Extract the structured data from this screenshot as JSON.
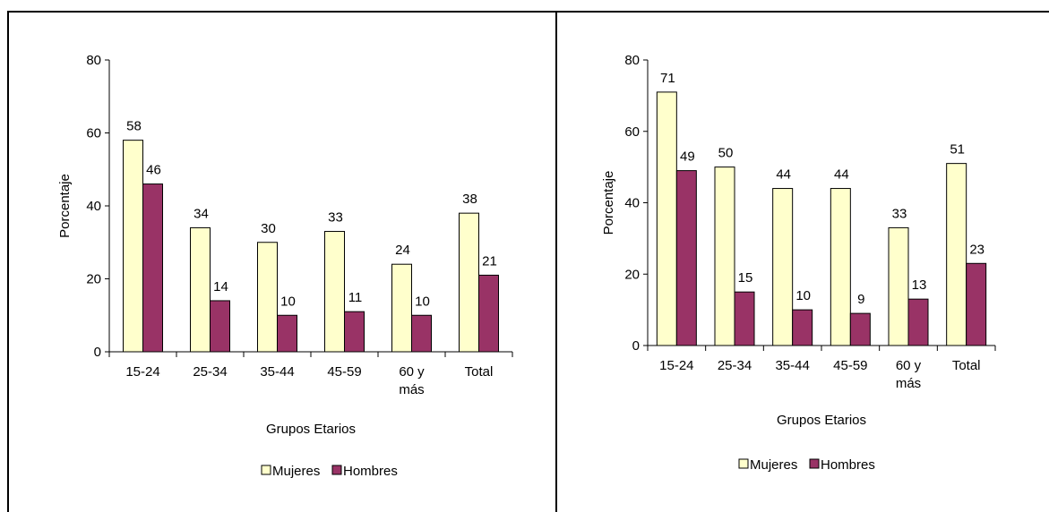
{
  "colors": {
    "mujeres": "#ffffcc",
    "hombres": "#993366",
    "axis": "#000000"
  },
  "chart_data": [
    {
      "type": "bar",
      "categories": [
        "15-24",
        "25-34",
        "35-44",
        "45-59",
        "60 y más",
        "Total"
      ],
      "series": [
        {
          "name": "Mujeres",
          "values": [
            58,
            34,
            30,
            33,
            24,
            38
          ]
        },
        {
          "name": "Hombres",
          "values": [
            46,
            14,
            10,
            11,
            10,
            21
          ]
        }
      ],
      "title": "",
      "xlabel": "Grupos Etarios",
      "ylabel": "Porcentaje",
      "ylim": [
        0,
        80
      ],
      "yticks": [
        0,
        20,
        40,
        60,
        80
      ],
      "grid": false,
      "legend": "bottom"
    },
    {
      "type": "bar",
      "categories": [
        "15-24",
        "25-34",
        "35-44",
        "45-59",
        "60 y más",
        "Total"
      ],
      "series": [
        {
          "name": "Mujeres",
          "values": [
            71,
            50,
            44,
            44,
            33,
            51
          ]
        },
        {
          "name": "Hombres",
          "values": [
            49,
            15,
            10,
            9,
            13,
            23
          ]
        }
      ],
      "title": "",
      "xlabel": "Grupos Etarios",
      "ylabel": "Porcentaje",
      "ylim": [
        0,
        80
      ],
      "yticks": [
        0,
        20,
        40,
        60,
        80
      ],
      "grid": false,
      "legend": "bottom"
    }
  ]
}
